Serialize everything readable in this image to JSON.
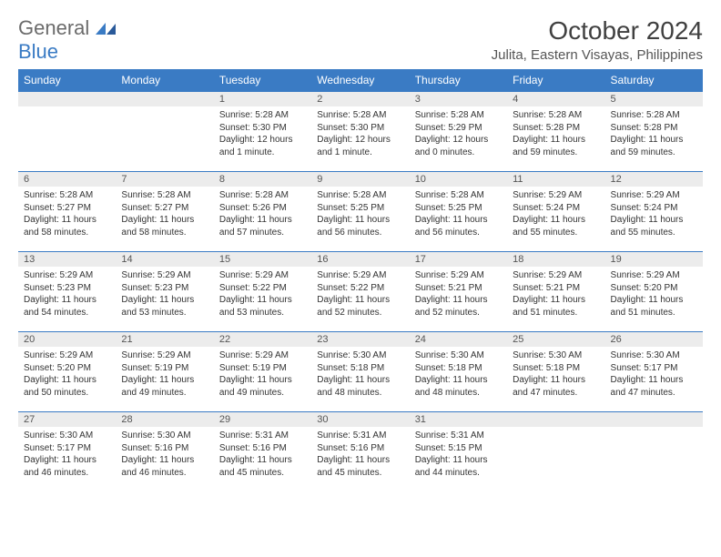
{
  "brand": {
    "name_top": "General",
    "name_bottom": "Blue"
  },
  "header": {
    "month_title": "October 2024",
    "location": "Julita, Eastern Visayas, Philippines"
  },
  "colors": {
    "header_bg": "#3a7bc4",
    "header_fg": "#ffffff",
    "stripe_bg": "#ececec",
    "rule": "#3a7bc4",
    "text": "#333333",
    "logo_gray": "#6b6b6b",
    "logo_blue": "#3a7bc4"
  },
  "typography": {
    "month_title_fontsize": 28,
    "location_fontsize": 15,
    "day_header_fontsize": 12,
    "daynum_fontsize": 11,
    "body_fontsize": 10
  },
  "day_headers": [
    "Sunday",
    "Monday",
    "Tuesday",
    "Wednesday",
    "Thursday",
    "Friday",
    "Saturday"
  ],
  "weeks": [
    [
      null,
      null,
      {
        "d": "1",
        "sr": "5:28 AM",
        "ss": "5:30 PM",
        "dl": "12 hours and 1 minute."
      },
      {
        "d": "2",
        "sr": "5:28 AM",
        "ss": "5:30 PM",
        "dl": "12 hours and 1 minute."
      },
      {
        "d": "3",
        "sr": "5:28 AM",
        "ss": "5:29 PM",
        "dl": "12 hours and 0 minutes."
      },
      {
        "d": "4",
        "sr": "5:28 AM",
        "ss": "5:28 PM",
        "dl": "11 hours and 59 minutes."
      },
      {
        "d": "5",
        "sr": "5:28 AM",
        "ss": "5:28 PM",
        "dl": "11 hours and 59 minutes."
      }
    ],
    [
      {
        "d": "6",
        "sr": "5:28 AM",
        "ss": "5:27 PM",
        "dl": "11 hours and 58 minutes."
      },
      {
        "d": "7",
        "sr": "5:28 AM",
        "ss": "5:27 PM",
        "dl": "11 hours and 58 minutes."
      },
      {
        "d": "8",
        "sr": "5:28 AM",
        "ss": "5:26 PM",
        "dl": "11 hours and 57 minutes."
      },
      {
        "d": "9",
        "sr": "5:28 AM",
        "ss": "5:25 PM",
        "dl": "11 hours and 56 minutes."
      },
      {
        "d": "10",
        "sr": "5:28 AM",
        "ss": "5:25 PM",
        "dl": "11 hours and 56 minutes."
      },
      {
        "d": "11",
        "sr": "5:29 AM",
        "ss": "5:24 PM",
        "dl": "11 hours and 55 minutes."
      },
      {
        "d": "12",
        "sr": "5:29 AM",
        "ss": "5:24 PM",
        "dl": "11 hours and 55 minutes."
      }
    ],
    [
      {
        "d": "13",
        "sr": "5:29 AM",
        "ss": "5:23 PM",
        "dl": "11 hours and 54 minutes."
      },
      {
        "d": "14",
        "sr": "5:29 AM",
        "ss": "5:23 PM",
        "dl": "11 hours and 53 minutes."
      },
      {
        "d": "15",
        "sr": "5:29 AM",
        "ss": "5:22 PM",
        "dl": "11 hours and 53 minutes."
      },
      {
        "d": "16",
        "sr": "5:29 AM",
        "ss": "5:22 PM",
        "dl": "11 hours and 52 minutes."
      },
      {
        "d": "17",
        "sr": "5:29 AM",
        "ss": "5:21 PM",
        "dl": "11 hours and 52 minutes."
      },
      {
        "d": "18",
        "sr": "5:29 AM",
        "ss": "5:21 PM",
        "dl": "11 hours and 51 minutes."
      },
      {
        "d": "19",
        "sr": "5:29 AM",
        "ss": "5:20 PM",
        "dl": "11 hours and 51 minutes."
      }
    ],
    [
      {
        "d": "20",
        "sr": "5:29 AM",
        "ss": "5:20 PM",
        "dl": "11 hours and 50 minutes."
      },
      {
        "d": "21",
        "sr": "5:29 AM",
        "ss": "5:19 PM",
        "dl": "11 hours and 49 minutes."
      },
      {
        "d": "22",
        "sr": "5:29 AM",
        "ss": "5:19 PM",
        "dl": "11 hours and 49 minutes."
      },
      {
        "d": "23",
        "sr": "5:30 AM",
        "ss": "5:18 PM",
        "dl": "11 hours and 48 minutes."
      },
      {
        "d": "24",
        "sr": "5:30 AM",
        "ss": "5:18 PM",
        "dl": "11 hours and 48 minutes."
      },
      {
        "d": "25",
        "sr": "5:30 AM",
        "ss": "5:18 PM",
        "dl": "11 hours and 47 minutes."
      },
      {
        "d": "26",
        "sr": "5:30 AM",
        "ss": "5:17 PM",
        "dl": "11 hours and 47 minutes."
      }
    ],
    [
      {
        "d": "27",
        "sr": "5:30 AM",
        "ss": "5:17 PM",
        "dl": "11 hours and 46 minutes."
      },
      {
        "d": "28",
        "sr": "5:30 AM",
        "ss": "5:16 PM",
        "dl": "11 hours and 46 minutes."
      },
      {
        "d": "29",
        "sr": "5:31 AM",
        "ss": "5:16 PM",
        "dl": "11 hours and 45 minutes."
      },
      {
        "d": "30",
        "sr": "5:31 AM",
        "ss": "5:16 PM",
        "dl": "11 hours and 45 minutes."
      },
      {
        "d": "31",
        "sr": "5:31 AM",
        "ss": "5:15 PM",
        "dl": "11 hours and 44 minutes."
      },
      null,
      null
    ]
  ],
  "labels": {
    "sunrise_prefix": "Sunrise: ",
    "sunset_prefix": "Sunset: ",
    "daylight_prefix": "Daylight: "
  }
}
